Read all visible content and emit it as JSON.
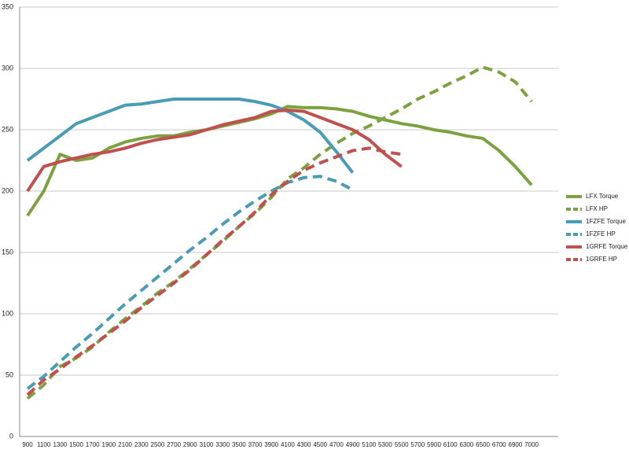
{
  "chart_data": {
    "type": "line",
    "categories": [
      "900",
      "1100",
      "1300",
      "1500",
      "1700",
      "1900",
      "2100",
      "2300",
      "2500",
      "2700",
      "2900",
      "3100",
      "3300",
      "3500",
      "3700",
      "3900",
      "4100",
      "4300",
      "4500",
      "4700",
      "4900",
      "5100",
      "5300",
      "5500",
      "5700",
      "5900",
      "6100",
      "6300",
      "6500",
      "6700",
      "6900",
      "7000"
    ],
    "series": [
      {
        "name": "LFX Torque",
        "color": "#7ba23f",
        "dashed": false,
        "values": [
          180,
          200,
          230,
          225,
          227,
          235,
          240,
          243,
          245,
          245,
          248,
          250,
          253,
          256,
          259,
          263,
          269,
          268,
          268,
          267,
          265,
          261,
          258,
          255,
          253,
          250,
          248,
          245,
          243,
          233,
          220,
          205
        ]
      },
      {
        "name": "LFX HP",
        "color": "#7ba23f",
        "dashed": true,
        "values": [
          31,
          42,
          57,
          64,
          73,
          85,
          96,
          106,
          117,
          126,
          137,
          148,
          159,
          171,
          182,
          195,
          210,
          219,
          230,
          239,
          247,
          253,
          260,
          267,
          275,
          281,
          288,
          294,
          301,
          297,
          289,
          273
        ]
      },
      {
        "name": "1FZFE Torque",
        "color": "#4a9bb5",
        "dashed": false,
        "values": [
          225,
          235,
          245,
          255,
          260,
          265,
          270,
          271,
          273,
          275,
          275,
          275,
          275,
          275,
          273,
          270,
          265,
          258,
          248,
          232,
          215,
          null,
          null,
          null,
          null,
          null,
          null,
          null,
          null,
          null,
          null,
          null
        ]
      },
      {
        "name": "1FZFE HP",
        "color": "#4a9bb5",
        "dashed": true,
        "values": [
          39,
          49,
          61,
          73,
          84,
          96,
          108,
          119,
          130,
          141,
          152,
          162,
          173,
          183,
          192,
          200,
          207,
          211,
          212,
          208,
          201,
          null,
          null,
          null,
          null,
          null,
          null,
          null,
          null,
          null,
          null,
          null
        ]
      },
      {
        "name": "1GRFE Torque",
        "color": "#c0504d",
        "dashed": false,
        "values": [
          200,
          220,
          224,
          227,
          230,
          232,
          235,
          239,
          242,
          244,
          246,
          250,
          254,
          257,
          260,
          265,
          266,
          265,
          260,
          255,
          250,
          242,
          230,
          220,
          null,
          null,
          null,
          null,
          null,
          null,
          null,
          null
        ]
      },
      {
        "name": "1GRFE HP",
        "color": "#c0504d",
        "dashed": true,
        "values": [
          34,
          46,
          55,
          65,
          74,
          84,
          94,
          105,
          115,
          125,
          136,
          148,
          160,
          171,
          183,
          197,
          208,
          217,
          223,
          228,
          233,
          235,
          232,
          230,
          null,
          null,
          null,
          null,
          null,
          null,
          null,
          null
        ]
      }
    ],
    "ylim": [
      0,
      350
    ],
    "yticks": [
      0,
      50,
      100,
      150,
      200,
      250,
      300,
      350
    ],
    "grid": true,
    "legend": "right"
  }
}
